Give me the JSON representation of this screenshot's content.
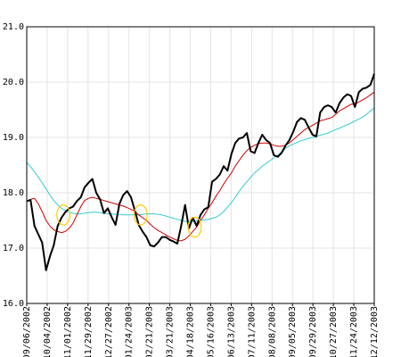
{
  "chart_data": {
    "type": "line",
    "title": "",
    "xlabel": "",
    "ylabel": "",
    "ylim": [
      16.0,
      21.0
    ],
    "yticks": [
      "16.0",
      "17.0",
      "18.0",
      "19.0",
      "20.0",
      "21.0"
    ],
    "grid": true,
    "legend": "none",
    "x_ticks": [
      "09/06/2002",
      "10/04/2002",
      "11/01/2002",
      "11/29/2002",
      "12/27/2002",
      "01/24/2003",
      "02/21/2003",
      "03/21/2003",
      "04/18/2003",
      "05/16/2003",
      "06/13/2003",
      "07/11/2003",
      "08/08/2003",
      "09/05/2003",
      "09/29/2003",
      "10/27/2003",
      "11/24/2003",
      "12/12/2003"
    ],
    "x_ticks_span": 65,
    "series": [
      {
        "color": "#000000",
        "width": 2,
        "values": [
          17.85,
          17.87,
          17.4,
          17.25,
          17.1,
          16.6,
          16.85,
          17.05,
          17.4,
          17.55,
          17.65,
          17.72,
          17.75,
          17.85,
          17.92,
          18.1,
          18.18,
          18.25,
          18.0,
          17.88,
          17.63,
          17.72,
          17.56,
          17.42,
          17.8,
          17.96,
          18.03,
          17.92,
          17.68,
          17.42,
          17.3,
          17.2,
          17.05,
          17.03,
          17.1,
          17.2,
          17.2,
          17.15,
          17.12,
          17.08,
          17.4,
          17.78,
          17.36,
          17.55,
          17.4,
          17.6,
          17.7,
          17.74,
          18.2,
          18.25,
          18.33,
          18.48,
          18.4,
          18.7,
          18.9,
          18.98,
          19.0,
          19.08,
          18.75,
          18.72,
          18.9,
          19.05,
          18.95,
          18.9,
          18.68,
          18.65,
          18.72,
          18.85,
          18.95,
          19.1,
          19.28,
          19.35,
          19.32,
          19.18,
          19.05,
          19.02,
          19.45,
          19.55,
          19.58,
          19.55,
          19.45,
          19.62,
          19.72,
          19.78,
          19.75,
          19.55,
          19.82,
          19.88,
          19.9,
          19.95,
          20.15
        ]
      },
      {
        "color": "#cc0000",
        "width": 1,
        "values": [
          17.85,
          17.88,
          17.9,
          17.8,
          17.66,
          17.5,
          17.4,
          17.33,
          17.3,
          17.28,
          17.3,
          17.36,
          17.45,
          17.6,
          17.75,
          17.86,
          17.9,
          17.92,
          17.9,
          17.88,
          17.86,
          17.84,
          17.82,
          17.8,
          17.78,
          17.76,
          17.73,
          17.7,
          17.66,
          17.6,
          17.55,
          17.5,
          17.43,
          17.37,
          17.32,
          17.28,
          17.24,
          17.2,
          17.17,
          17.14,
          17.13,
          17.16,
          17.22,
          17.3,
          17.38,
          17.5,
          17.6,
          17.72,
          17.82,
          17.94,
          18.04,
          18.16,
          18.26,
          18.36,
          18.48,
          18.58,
          18.68,
          18.76,
          18.82,
          18.86,
          18.89,
          18.9,
          18.9,
          18.88,
          18.86,
          18.84,
          18.84,
          18.86,
          18.9,
          18.96,
          19.02,
          19.08,
          19.14,
          19.18,
          19.22,
          19.26,
          19.3,
          19.32,
          19.34,
          19.36,
          19.42,
          19.48,
          19.52,
          19.56,
          19.6,
          19.6,
          19.64,
          19.68,
          19.72,
          19.77,
          19.82
        ]
      },
      {
        "color": "#33cccc",
        "width": 1,
        "values": [
          18.55,
          18.47,
          18.38,
          18.28,
          18.18,
          18.07,
          17.96,
          17.86,
          17.78,
          17.72,
          17.68,
          17.65,
          17.63,
          17.62,
          17.62,
          17.63,
          17.64,
          17.65,
          17.65,
          17.64,
          17.63,
          17.62,
          17.62,
          17.61,
          17.61,
          17.6,
          17.6,
          17.6,
          17.6,
          17.6,
          17.61,
          17.62,
          17.62,
          17.62,
          17.61,
          17.6,
          17.58,
          17.56,
          17.54,
          17.52,
          17.5,
          17.48,
          17.48,
          17.48,
          17.49,
          17.5,
          17.51,
          17.52,
          17.54,
          17.56,
          17.6,
          17.66,
          17.74,
          17.82,
          17.92,
          18.02,
          18.12,
          18.2,
          18.28,
          18.36,
          18.42,
          18.48,
          18.53,
          18.58,
          18.63,
          18.68,
          18.74,
          18.8,
          18.85,
          18.88,
          18.91,
          18.94,
          18.96,
          18.98,
          19.0,
          19.02,
          19.04,
          19.06,
          19.08,
          19.11,
          19.14,
          19.17,
          19.2,
          19.23,
          19.26,
          19.3,
          19.33,
          19.37,
          19.42,
          19.48,
          19.53
        ]
      }
    ],
    "annotations": [
      {
        "type": "ellipse",
        "x_index": 9.5,
        "y": 17.6,
        "rx_index": 1.7,
        "ry": 0.18
      },
      {
        "type": "ellipse",
        "x_index": 29.5,
        "y": 17.6,
        "rx_index": 1.7,
        "ry": 0.18
      },
      {
        "type": "ellipse",
        "x_index": 43.5,
        "y": 17.38,
        "rx_index": 1.7,
        "ry": 0.18
      }
    ],
    "annotation_color": "#ffcc00"
  }
}
